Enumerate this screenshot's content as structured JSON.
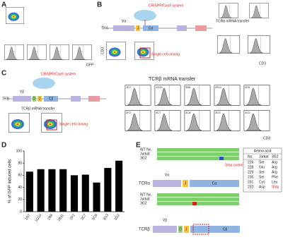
{
  "panel_a": {
    "label": "A",
    "x_axis": "GFP"
  },
  "panel_b": {
    "label": "B",
    "crispr": "CRISPR/Cas9 system",
    "gene": "TRA",
    "v": "Vα",
    "j": "J",
    "c": "Cα",
    "cloning": "Single cell cloning",
    "y_axis": "CD3",
    "transfer_title": "TCRα mRNA transfer",
    "x_axis": "CD3"
  },
  "panel_c": {
    "label": "C",
    "crispr": "CRISPR/Cas9 system",
    "gene": "TRB",
    "v": "Vβ",
    "d": "D",
    "j": "J",
    "c": "Cβ",
    "transfer": "TCRβ mRNA transfer",
    "cloning": "Single cell cloning",
    "transfer_title": "TCRβ mRNA transfer",
    "clones": [
      "1D7",
      "1G10",
      "2B8",
      "2B11",
      "2E6",
      "2F2",
      "3C7",
      "3C8",
      "3G3",
      "3G2"
    ],
    "x_axis": "CD3"
  },
  "panel_d": {
    "label": "D",
    "chart": {
      "type": "bar",
      "y_label": "% of GFP induced cells",
      "categories": [
        "1D7",
        "1G10",
        "2B8",
        "2B11",
        "2F2",
        "3C7",
        "3C8",
        "3G3",
        "3G2"
      ],
      "values": [
        66,
        70,
        70,
        70,
        60,
        61,
        48,
        72,
        84
      ],
      "color": "#000000",
      "ylim": [
        0,
        100
      ],
      "yticks": [
        0,
        20,
        40,
        60,
        80,
        100
      ]
    }
  },
  "panel_e": {
    "label": "E",
    "rows_label": [
      "WT No.",
      "Jurkat",
      "3G2"
    ],
    "stop_note": "Stop codon",
    "alpha": {
      "gene": "TCRα",
      "v": "Vα",
      "j": "J",
      "c": "Cα"
    },
    "beta": {
      "gene": "TCRβ",
      "v": "Vβ",
      "d": "D",
      "j": "J",
      "c": "Cβ"
    },
    "table": {
      "title": "Amino acid",
      "header": [
        "No.",
        "Jurkat",
        "3G2"
      ],
      "rows": [
        [
          "226",
          "Ser",
          "Arg"
        ],
        [
          "228",
          "Glu",
          "Arg"
        ],
        [
          "229",
          "Ser",
          "Arg"
        ],
        [
          "230",
          "Ser",
          "Phe"
        ],
        [
          "231",
          "Cys",
          "Leu"
        ],
        [
          "232",
          "Asp",
          "Stop"
        ]
      ]
    }
  }
}
